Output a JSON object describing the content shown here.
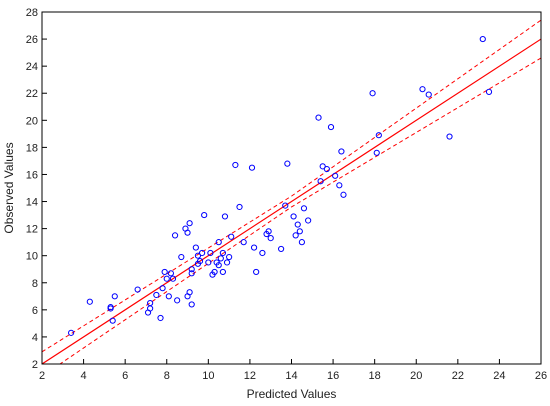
{
  "chart_data": {
    "type": "scatter",
    "title": "",
    "xlabel": "Predicted Values",
    "ylabel": "Observed Values",
    "xlim": [
      2,
      26
    ],
    "ylim": [
      2,
      28
    ],
    "x_ticks": [
      "2",
      "4",
      "6",
      "8",
      "10",
      "12",
      "14",
      "16",
      "18",
      "20",
      "22",
      "24",
      "26"
    ],
    "y_ticks": [
      "2",
      "4",
      "6",
      "8",
      "10",
      "12",
      "14",
      "16",
      "18",
      "20",
      "22",
      "24",
      "26",
      "28"
    ],
    "grid": false,
    "legend": "none",
    "colors": {
      "points": "#0000ff",
      "fit_line": "#ff0000",
      "frame": "#000000"
    },
    "fit_line": {
      "x": [
        2,
        26
      ],
      "y": [
        2,
        26
      ]
    },
    "confidence_upper": {
      "x": [
        2,
        14,
        26
      ],
      "y": [
        2.9,
        14.4,
        27.4
      ]
    },
    "confidence_lower": {
      "x": [
        2,
        14,
        26
      ],
      "y": [
        1.1,
        13.6,
        24.6
      ]
    },
    "points": {
      "x": [
        3.4,
        4.3,
        5.3,
        5.3,
        5.4,
        5.5,
        6.6,
        7.1,
        7.2,
        7.2,
        7.5,
        7.7,
        7.8,
        7.9,
        8.0,
        8.1,
        8.2,
        8.3,
        8.4,
        8.5,
        8.7,
        8.9,
        9.0,
        9.0,
        9.1,
        9.1,
        9.2,
        9.2,
        9.2,
        9.4,
        9.5,
        9.5,
        9.6,
        9.7,
        9.8,
        10.0,
        10.1,
        10.2,
        10.3,
        10.4,
        10.5,
        10.5,
        10.6,
        10.7,
        10.7,
        10.8,
        10.9,
        11.0,
        11.1,
        11.3,
        11.5,
        11.7,
        12.1,
        12.2,
        12.3,
        12.6,
        12.8,
        12.9,
        13.0,
        13.5,
        13.7,
        13.8,
        14.1,
        14.2,
        14.3,
        14.4,
        14.5,
        14.6,
        14.8,
        15.3,
        15.4,
        15.5,
        15.7,
        15.9,
        16.1,
        16.3,
        16.4,
        16.5,
        17.9,
        18.1,
        18.2,
        20.3,
        20.6,
        21.6,
        23.2,
        23.5
      ],
      "y": [
        4.3,
        6.6,
        6.1,
        6.2,
        5.2,
        7.0,
        7.5,
        5.8,
        6.1,
        6.5,
        7.1,
        5.4,
        7.6,
        8.8,
        8.3,
        7.0,
        8.7,
        8.3,
        11.5,
        6.7,
        9.9,
        12.0,
        7.0,
        11.7,
        7.3,
        12.4,
        6.4,
        8.7,
        9.0,
        10.6,
        9.4,
        10.0,
        9.6,
        10.2,
        13.0,
        9.5,
        10.2,
        8.6,
        8.8,
        9.5,
        11.0,
        9.3,
        9.8,
        8.8,
        10.2,
        12.9,
        9.5,
        9.9,
        11.4,
        16.7,
        13.6,
        11.0,
        16.5,
        10.6,
        8.8,
        10.2,
        11.6,
        11.8,
        11.3,
        10.5,
        13.7,
        16.8,
        12.9,
        11.5,
        12.3,
        11.8,
        11.0,
        13.5,
        12.6,
        20.2,
        15.5,
        16.6,
        16.4,
        19.5,
        15.9,
        15.2,
        17.7,
        14.5,
        22.0,
        17.6,
        18.9,
        22.3,
        21.9,
        18.8,
        26.0,
        22.1
      ]
    }
  }
}
